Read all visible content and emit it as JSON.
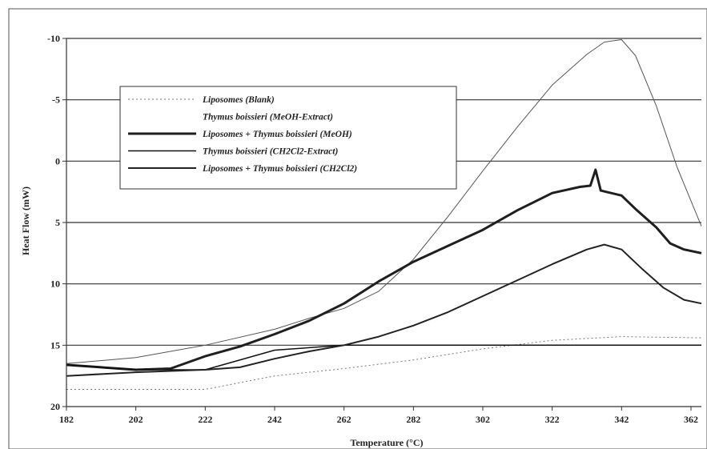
{
  "chart_data": {
    "type": "line",
    "xlabel": "Temperature (°C)",
    "ylabel": "Heat Flow (mW)",
    "xlim": [
      182,
      365
    ],
    "ylim": [
      20,
      -10
    ],
    "y_inverted": true,
    "xticks": [
      182,
      202,
      222,
      242,
      262,
      282,
      302,
      322,
      342,
      362
    ],
    "yticks": [
      -10,
      -5,
      0,
      5,
      10,
      15,
      20
    ],
    "ytick_labels": [
      "-10",
      "-5",
      "0",
      "5",
      "10",
      "15",
      "20"
    ],
    "grid": "horizontal",
    "legend_position": "upper-left",
    "series": [
      {
        "name": "Liposomes (Blank)",
        "style": "dotted",
        "color": "#777777",
        "width": 1,
        "x": [
          182,
          222,
          242,
          262,
          282,
          302,
          322,
          342,
          365
        ],
        "y": [
          18.6,
          18.6,
          17.5,
          16.9,
          16.2,
          15.3,
          14.6,
          14.3,
          14.4
        ]
      },
      {
        "name": "Thymus boissieri (MeOH-Extract)",
        "style": "solid",
        "color": "#555555",
        "width": 1,
        "x": [
          182,
          202,
          222,
          242,
          252,
          262,
          272,
          282,
          292,
          302,
          312,
          322,
          332,
          337,
          342,
          346,
          352,
          358,
          365
        ],
        "y": [
          16.5,
          16.0,
          15.0,
          13.7,
          12.8,
          12.0,
          10.6,
          8.0,
          4.5,
          0.8,
          -2.8,
          -6.2,
          -8.7,
          -9.7,
          -9.9,
          -8.6,
          -4.5,
          0.5,
          5.3
        ]
      },
      {
        "name": "Liposomes + Thymus boissieri (MeOH)",
        "style": "solid",
        "color": "#1f1f1f",
        "width": 3,
        "x": [
          182,
          192,
          202,
          212,
          222,
          232,
          242,
          252,
          262,
          272,
          282,
          292,
          302,
          312,
          322,
          330,
          333,
          334.5,
          336,
          342,
          346,
          352,
          356,
          360,
          365
        ],
        "y": [
          16.6,
          16.8,
          17.0,
          16.9,
          15.9,
          15.1,
          14.1,
          13.0,
          11.6,
          9.8,
          8.2,
          6.9,
          5.6,
          4.0,
          2.6,
          2.1,
          2.0,
          0.7,
          2.4,
          2.8,
          3.9,
          5.4,
          6.7,
          7.2,
          7.5
        ]
      },
      {
        "name": "Thymus boissieri (CH2Cl2-Extract)",
        "style": "solid",
        "color": "#111111",
        "width": 1.5,
        "x": [
          182,
          202,
          222,
          242,
          262,
          282,
          302,
          322,
          342,
          365
        ],
        "y": [
          16.6,
          17.0,
          17.0,
          15.4,
          15.0,
          15.0,
          15.0,
          15.0,
          15.0,
          15.0
        ]
      },
      {
        "name": "Liposomes + Thymus boissieri (CH2Cl2)",
        "style": "solid",
        "color": "#222222",
        "width": 2,
        "x": [
          182,
          202,
          222,
          232,
          242,
          252,
          262,
          272,
          282,
          292,
          302,
          312,
          322,
          332,
          337,
          342,
          348,
          354,
          360,
          365
        ],
        "y": [
          17.5,
          17.2,
          17.0,
          16.8,
          16.1,
          15.5,
          15.0,
          14.3,
          13.4,
          12.3,
          11.0,
          9.7,
          8.4,
          7.2,
          6.8,
          7.2,
          8.8,
          10.3,
          11.3,
          11.6
        ]
      }
    ]
  }
}
